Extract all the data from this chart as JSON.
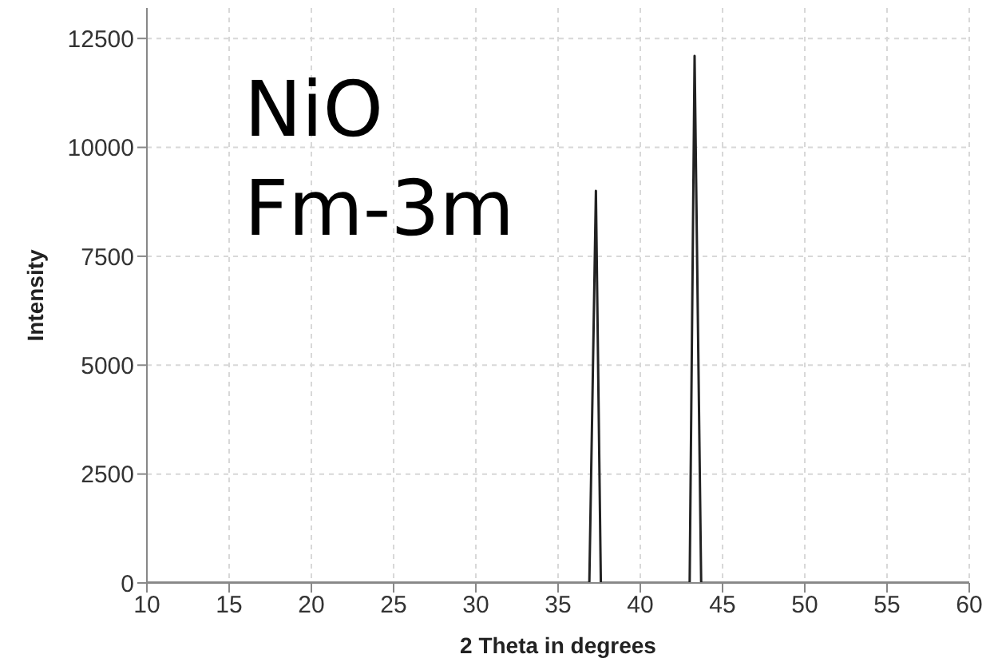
{
  "chart_data": {
    "type": "line",
    "xlabel": "2 Theta in degrees",
    "ylabel": "Intensity",
    "annotations": [
      "NiO",
      "Fm-3m"
    ],
    "x": [
      10,
      36.9,
      37.3,
      37.6,
      43.0,
      43.3,
      43.7,
      60
    ],
    "series": [
      {
        "color": "#222222",
        "values": [
          0,
          0,
          9000,
          0,
          0,
          12100,
          0,
          0
        ]
      }
    ],
    "xlim": [
      10,
      60
    ],
    "xticks": [
      10,
      15,
      20,
      25,
      30,
      35,
      40,
      45,
      50,
      55,
      60
    ],
    "ylim": [
      0,
      13200
    ],
    "yticks": [
      0,
      2500,
      5000,
      7500,
      10000,
      12500
    ],
    "grid": true,
    "marker": "none",
    "line_style": "solid"
  }
}
